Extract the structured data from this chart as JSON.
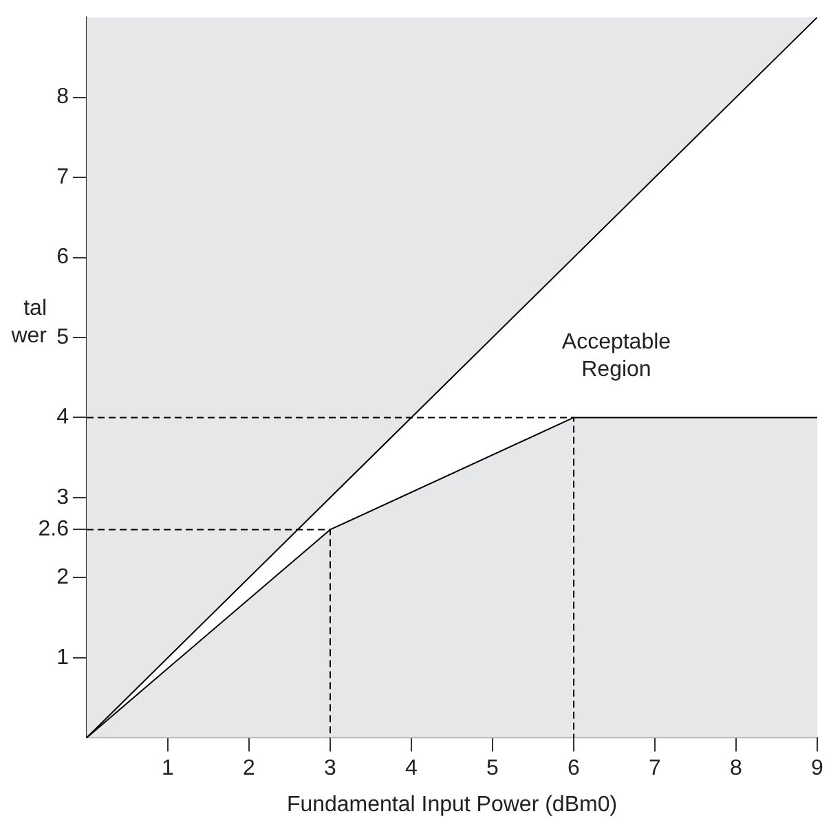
{
  "chart_data": {
    "type": "line",
    "xlabel": "Fundamental Input Power (dBm0)",
    "ylabel": "tal\nwer",
    "xlim": [
      0,
      9
    ],
    "ylim": [
      0,
      9
    ],
    "xticks": [
      1,
      2,
      3,
      4,
      5,
      6,
      7,
      8,
      9
    ],
    "yticks": [
      1,
      2,
      {
        "value": 2.6,
        "label": "2.6"
      },
      3,
      4,
      5,
      6,
      7,
      8
    ],
    "grid": false,
    "legend": false,
    "series": [
      {
        "color": "#000000",
        "line_style": "dashed",
        "x": [
          0,
          6,
          6
        ],
        "values": [
          4,
          4,
          0
        ]
      },
      {
        "color": "#000000",
        "line_style": "dashed",
        "x": [
          0,
          3,
          3
        ],
        "values": [
          2.6,
          2.6,
          0
        ]
      },
      {
        "type": "area",
        "color": "#e6e7e8",
        "x": [
          0,
          3,
          6,
          9
        ],
        "values": [
          0,
          2.6,
          4,
          4
        ]
      },
      {
        "type": "area",
        "color": "#ffffff",
        "x": [
          0,
          9
        ],
        "values": [
          0,
          9
        ]
      }
    ],
    "annotations": [
      "Acceptable\nRegion"
    ]
  }
}
